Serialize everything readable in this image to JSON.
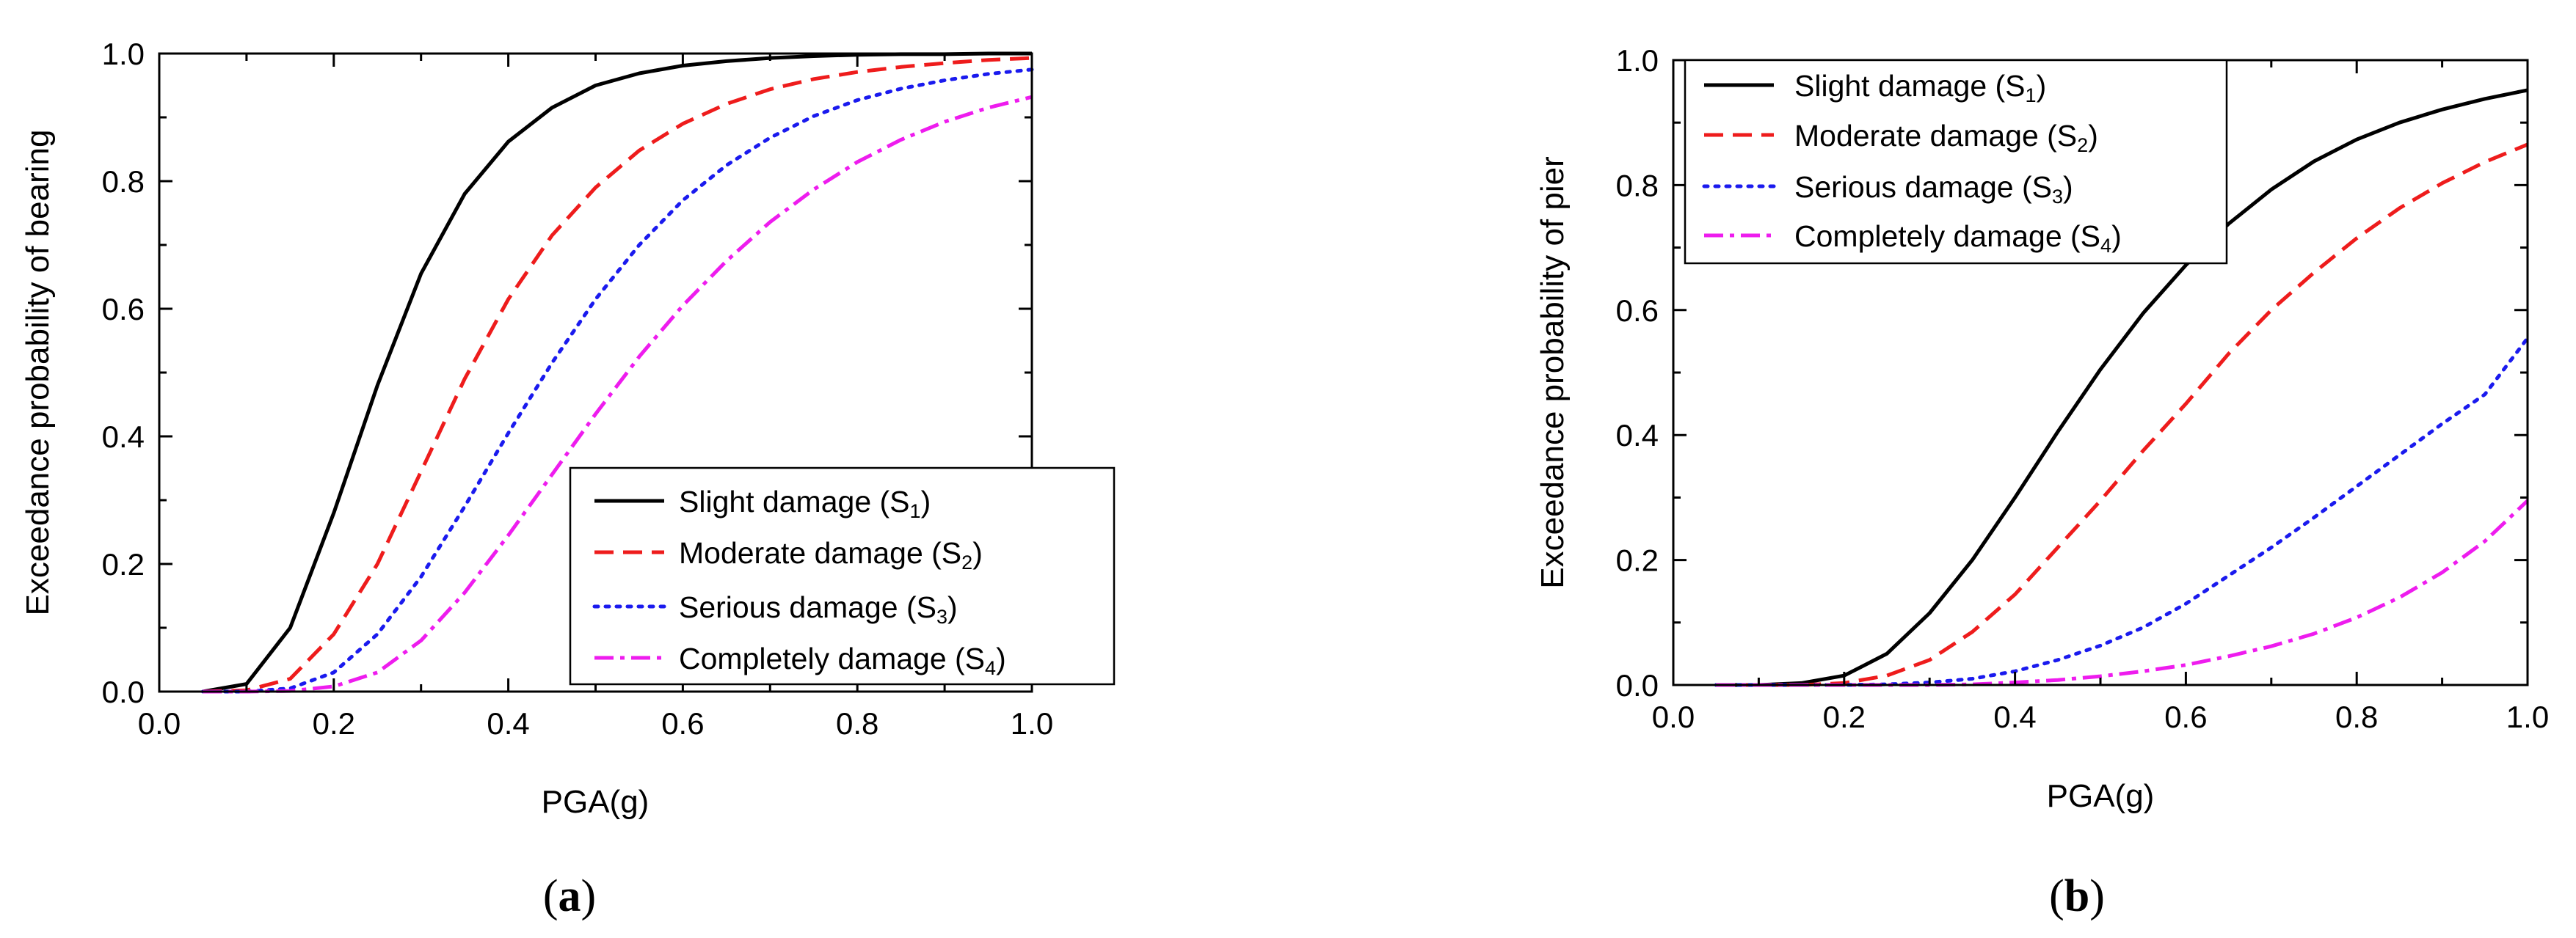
{
  "chart_data": [
    {
      "id": "a",
      "type": "line",
      "caption_open": "(",
      "caption_letter": "a",
      "caption_close": ")",
      "xlabel": "PGA(g)",
      "ylabel": "Exceedance probability of bearing",
      "xlim": [
        0.0,
        1.0
      ],
      "ylim": [
        0.0,
        1.0
      ],
      "xticks": [
        0.0,
        0.2,
        0.4,
        0.6,
        0.8,
        1.0
      ],
      "yticks": [
        0.0,
        0.2,
        0.4,
        0.6,
        0.8,
        1.0
      ],
      "xtick_labels": [
        "0.0",
        "0.2",
        "0.4",
        "0.6",
        "0.8",
        "1.0"
      ],
      "ytick_labels": [
        "0.0",
        "0.2",
        "0.4",
        "0.6",
        "0.8",
        "1.0"
      ],
      "grid": false,
      "legend_position": "bottom-right",
      "x": [
        0.05,
        0.1,
        0.15,
        0.2,
        0.25,
        0.3,
        0.35,
        0.4,
        0.45,
        0.5,
        0.55,
        0.6,
        0.65,
        0.7,
        0.75,
        0.8,
        0.85,
        0.9,
        0.95,
        1.0
      ],
      "series": [
        {
          "name": "Slight damage",
          "sub": "1",
          "color": "#000000",
          "dash": "solid",
          "values": [
            0.0,
            0.012,
            0.1,
            0.28,
            0.48,
            0.655,
            0.78,
            0.862,
            0.915,
            0.95,
            0.969,
            0.981,
            0.988,
            0.993,
            0.996,
            0.998,
            0.999,
            0.999,
            1.0,
            1.0
          ]
        },
        {
          "name": "Moderate damage",
          "sub": "2",
          "color": "#ee1c1c",
          "dash": "dashed",
          "values": [
            0.0,
            0.002,
            0.02,
            0.09,
            0.2,
            0.345,
            0.49,
            0.615,
            0.715,
            0.79,
            0.848,
            0.89,
            0.921,
            0.944,
            0.96,
            0.971,
            0.979,
            0.985,
            0.99,
            0.993
          ]
        },
        {
          "name": "Serious damage",
          "sub": "3",
          "color": "#1a1aee",
          "dash": "dotted",
          "values": [
            0.0,
            0.0,
            0.005,
            0.03,
            0.09,
            0.18,
            0.29,
            0.405,
            0.515,
            0.615,
            0.7,
            0.77,
            0.825,
            0.868,
            0.902,
            0.927,
            0.945,
            0.958,
            0.968,
            0.975
          ]
        },
        {
          "name": "Completely damage",
          "sub": "4",
          "color": "#ee1cee",
          "dash": "dashdot",
          "values": [
            0.0,
            0.0,
            0.001,
            0.008,
            0.03,
            0.08,
            0.155,
            0.245,
            0.34,
            0.435,
            0.525,
            0.605,
            0.675,
            0.736,
            0.787,
            0.83,
            0.865,
            0.893,
            0.915,
            0.932
          ]
        }
      ]
    },
    {
      "id": "b",
      "type": "line",
      "caption_open": "(",
      "caption_letter": "b",
      "caption_close": ")",
      "xlabel": "PGA(g)",
      "ylabel": "Exceedance probability of pier",
      "xlim": [
        0.0,
        1.0
      ],
      "ylim": [
        0.0,
        1.0
      ],
      "xticks": [
        0.0,
        0.2,
        0.4,
        0.6,
        0.8,
        1.0
      ],
      "yticks": [
        0.0,
        0.2,
        0.4,
        0.6,
        0.8,
        1.0
      ],
      "xtick_labels": [
        "0.0",
        "0.2",
        "0.4",
        "0.6",
        "0.8",
        "1.0"
      ],
      "ytick_labels": [
        "0.0",
        "0.2",
        "0.4",
        "0.6",
        "0.8",
        "1.0"
      ],
      "grid": false,
      "legend_position": "top-left",
      "x": [
        0.05,
        0.1,
        0.15,
        0.2,
        0.25,
        0.3,
        0.35,
        0.4,
        0.45,
        0.5,
        0.55,
        0.6,
        0.65,
        0.7,
        0.75,
        0.8,
        0.85,
        0.9,
        0.95,
        1.0
      ],
      "series": [
        {
          "name": "Slight damage",
          "sub": "1",
          "color": "#000000",
          "dash": "solid",
          "values": [
            0.0,
            0.0,
            0.003,
            0.015,
            0.05,
            0.115,
            0.2,
            0.3,
            0.405,
            0.505,
            0.595,
            0.672,
            0.738,
            0.793,
            0.838,
            0.873,
            0.9,
            0.921,
            0.938,
            0.952
          ]
        },
        {
          "name": "Moderate damage",
          "sub": "2",
          "color": "#ee1c1c",
          "dash": "dashed",
          "values": [
            0.0,
            0.0,
            0.0,
            0.003,
            0.015,
            0.04,
            0.085,
            0.145,
            0.22,
            0.295,
            0.375,
            0.45,
            0.53,
            0.6,
            0.66,
            0.715,
            0.763,
            0.803,
            0.837,
            0.865
          ]
        },
        {
          "name": "Serious damage",
          "sub": "3",
          "color": "#1a1aee",
          "dash": "dotted",
          "values": [
            0.0,
            0.0,
            0.0,
            0.0,
            0.001,
            0.004,
            0.01,
            0.022,
            0.04,
            0.063,
            0.092,
            0.13,
            0.175,
            0.22,
            0.268,
            0.318,
            0.368,
            0.418,
            0.465,
            0.555
          ]
        },
        {
          "name": "Completely damage",
          "sub": "4",
          "color": "#ee1cee",
          "dash": "dashdot",
          "values": [
            0.0,
            0.0,
            0.0,
            0.0,
            0.0,
            0.0,
            0.001,
            0.004,
            0.008,
            0.014,
            0.022,
            0.032,
            0.046,
            0.062,
            0.082,
            0.108,
            0.14,
            0.18,
            0.23,
            0.295
          ]
        }
      ]
    }
  ]
}
